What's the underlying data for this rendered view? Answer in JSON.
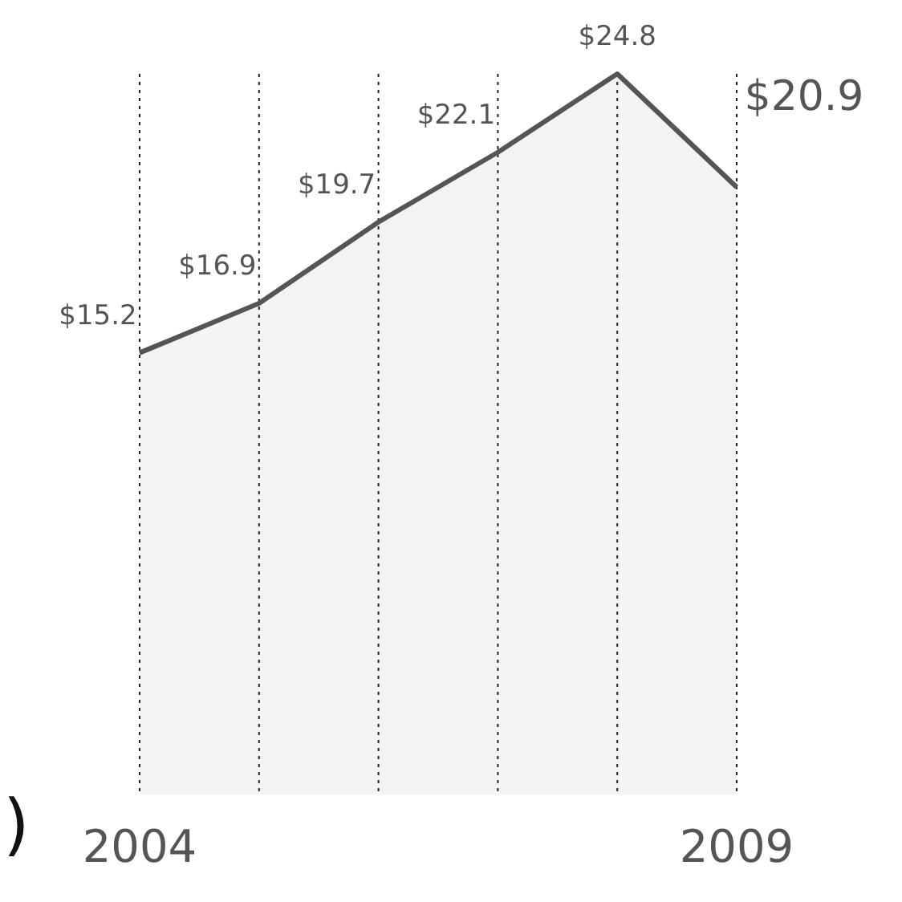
{
  "chart_data": {
    "type": "area",
    "categories": [
      "2004",
      null,
      null,
      null,
      null,
      "2009"
    ],
    "values": [
      15.2,
      16.9,
      19.7,
      22.1,
      24.8,
      20.9
    ],
    "value_labels": [
      "$15.2",
      "$16.9",
      "$19.7",
      "$22.1",
      "$24.8",
      "$20.9"
    ],
    "color": "#555555",
    "grid": "x",
    "annotations": [
      ")"
    ]
  }
}
